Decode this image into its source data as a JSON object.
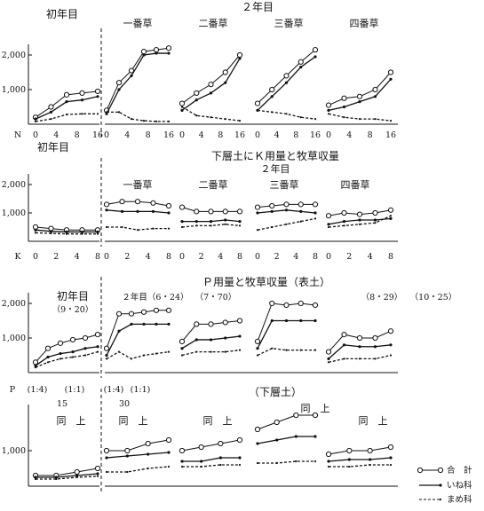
{
  "legend": {
    "total": "合　計",
    "rice": "いね科",
    "bean": "まめ科"
  },
  "panels": [
    {
      "id": "p1",
      "top_left_label": "初年目",
      "top_right_label": "２年目",
      "x_label_lead": "N",
      "ytick_labels": [
        "1,000",
        "2,000"
      ],
      "groups": [
        {
          "id": "g1",
          "label": "",
          "subtitle": "",
          "x_tick_labels": [
            "0",
            "4",
            "8",
            "16"
          ],
          "total": [
            200,
            500,
            850,
            900,
            950
          ],
          "rice": [
            150,
            350,
            650,
            700,
            800
          ],
          "bean": [
            80,
            150,
            280,
            300,
            300
          ]
        },
        {
          "id": "g2",
          "label": "一番草",
          "subtitle": "",
          "x_tick_labels": [
            "0",
            "4",
            "8",
            "16"
          ],
          "total": [
            400,
            1200,
            1550,
            2100,
            2150,
            2200
          ],
          "rice": [
            300,
            1000,
            1400,
            2000,
            2050,
            2050
          ],
          "bean": [
            350,
            350,
            150,
            100,
            80,
            80
          ]
        },
        {
          "id": "g3",
          "label": "二番草",
          "subtitle": "",
          "x_tick_labels": [
            "0",
            "4",
            "8",
            "16"
          ],
          "total": [
            600,
            900,
            1150,
            1500,
            2000
          ],
          "rice": [
            400,
            700,
            900,
            1200,
            1900
          ],
          "bean": [
            500,
            250,
            200,
            150,
            100
          ]
        },
        {
          "id": "g4",
          "label": "三番草",
          "subtitle": "",
          "x_tick_labels": [
            "0",
            "4",
            "8",
            "16"
          ],
          "total": [
            600,
            1000,
            1400,
            1800,
            2150
          ],
          "rice": [
            400,
            800,
            1200,
            1650,
            1950
          ],
          "bean": [
            400,
            350,
            300,
            200,
            150
          ]
        },
        {
          "id": "g5",
          "label": "四番草",
          "subtitle": "",
          "x_tick_labels": [
            "0",
            "4",
            "8",
            "16"
          ],
          "total": [
            550,
            750,
            800,
            1000,
            1500
          ],
          "rice": [
            400,
            500,
            650,
            800,
            1300
          ],
          "bean": [
            300,
            200,
            150,
            150,
            100
          ]
        }
      ]
    },
    {
      "id": "p2",
      "top_left_label": "初年目",
      "title_line1": "下層土にＫ用量と牧草収量",
      "title_line2": "２年目",
      "x_label_lead": "K",
      "ytick_labels": [
        "1,000",
        "2,000"
      ],
      "groups": [
        {
          "id": "g1",
          "label": "",
          "subtitle": "",
          "x_tick_labels": [
            "0",
            "2",
            "4",
            "8"
          ],
          "total": [
            500,
            450,
            400,
            400,
            400
          ],
          "rice": [
            400,
            350,
            330,
            330,
            330
          ],
          "bean": [
            300,
            280,
            260,
            260,
            260
          ]
        },
        {
          "id": "g2",
          "label": "一番草",
          "subtitle": "",
          "x_tick_labels": [
            "0",
            "2",
            "4",
            "8"
          ],
          "total": [
            1300,
            1400,
            1400,
            1350,
            1250
          ],
          "rice": [
            1100,
            1050,
            1050,
            1050,
            1000
          ],
          "bean": [
            500,
            500,
            400,
            450,
            450
          ]
        },
        {
          "id": "g3",
          "label": "二番草",
          "subtitle": "",
          "x_tick_labels": [
            "0",
            "2",
            "4",
            "8"
          ],
          "total": [
            1200,
            1050,
            1050,
            1050,
            1050
          ],
          "rice": [
            700,
            700,
            700,
            750,
            700
          ],
          "bean": [
            500,
            550,
            550,
            600,
            550
          ]
        },
        {
          "id": "g4",
          "label": "三番草",
          "subtitle": "",
          "x_tick_labels": [
            "0",
            "2",
            "4",
            "8"
          ],
          "total": [
            1200,
            1250,
            1300,
            1300,
            1300
          ],
          "rice": [
            1000,
            1050,
            1100,
            1050,
            1000
          ],
          "bean": [
            400,
            500,
            600,
            700,
            800
          ]
        },
        {
          "id": "g5",
          "label": "四番草",
          "subtitle": "",
          "x_tick_labels": [
            "0",
            "2",
            "4",
            "8"
          ],
          "total": [
            900,
            1000,
            950,
            1000,
            1100
          ],
          "rice": [
            600,
            700,
            750,
            750,
            800
          ],
          "bean": [
            500,
            550,
            600,
            650,
            900
          ]
        }
      ]
    },
    {
      "id": "p3",
      "title_line1": "Ｐ用量と牧草収量（表土）",
      "top_left_label": "初年目",
      "top_left_sub": "（9・20）",
      "x_label_lead": "",
      "ytick_labels": [
        "1,000",
        "2,000"
      ],
      "groups": [
        {
          "id": "g1",
          "label": "",
          "subtitle": "",
          "x_tick_labels": [],
          "total": [
            300,
            700,
            850,
            950,
            1000,
            1100
          ],
          "rice": [
            200,
            450,
            550,
            600,
            700,
            750
          ],
          "bean": [
            150,
            300,
            400,
            450,
            500,
            600
          ]
        },
        {
          "id": "g2",
          "label": "２年目（6・24）",
          "subtitle": "",
          "x_tick_labels": [],
          "total": [
            700,
            1700,
            1700,
            1750,
            1800,
            1800
          ],
          "rice": [
            500,
            1200,
            1400,
            1400,
            1400,
            1400
          ],
          "bean": [
            400,
            600,
            400,
            500,
            550,
            600
          ]
        },
        {
          "id": "g3",
          "label": "（7・70）",
          "subtitle": "",
          "x_tick_labels": [],
          "total": [
            900,
            1400,
            1400,
            1450,
            1500
          ],
          "rice": [
            700,
            950,
            950,
            1000,
            1050
          ],
          "bean": [
            500,
            600,
            600,
            600,
            650
          ]
        },
        {
          "id": "g4",
          "label": "",
          "subtitle": "",
          "x_tick_labels": [],
          "total": [
            900,
            2000,
            1950,
            2000,
            1950
          ],
          "rice": [
            700,
            1500,
            1500,
            1500,
            1500
          ],
          "bean": [
            500,
            700,
            650,
            650,
            650
          ]
        },
        {
          "id": "g5",
          "label": "（8・29）",
          "subtitle": "",
          "x_tick_labels": [],
          "total": [
            600,
            1100,
            1000,
            1000,
            1200
          ],
          "rice": [
            400,
            800,
            750,
            750,
            800
          ],
          "bean": [
            300,
            400,
            400,
            400,
            500
          ]
        },
        {
          "id": "g6",
          "label": "（10・25）",
          "subtitle": "",
          "x_tick_labels": [],
          "total": [],
          "rice": [],
          "bean": []
        }
      ]
    },
    {
      "id": "p4",
      "x_label_top": "P",
      "ratio_labels": [
        "(1:4)",
        "(1:1)",
        "(1:4)",
        "(1:1)"
      ],
      "ratio_values": [
        "15",
        "30"
      ],
      "title_line1": "（下層土）",
      "ytick_labels": [
        "1,000"
      ],
      "groups": [
        {
          "id": "g1",
          "label": "同　上",
          "subtitle": "",
          "total": [
            300,
            300,
            400,
            500
          ],
          "rice": [
            250,
            250,
            300,
            350
          ],
          "bean": [
            200,
            200,
            250,
            280
          ]
        },
        {
          "id": "g2",
          "label": "同　上",
          "subtitle": "",
          "total": [
            1000,
            1000,
            1200,
            1300
          ],
          "rice": [
            800,
            850,
            900,
            950
          ],
          "bean": [
            400,
            400,
            500,
            550
          ]
        },
        {
          "id": "g3",
          "label": "同　上",
          "subtitle": "",
          "total": [
            1000,
            1100,
            1200,
            1300
          ],
          "rice": [
            700,
            700,
            800,
            800
          ],
          "bean": [
            550,
            550,
            600,
            600
          ]
        },
        {
          "id": "g4",
          "label": "同　上",
          "subtitle": "",
          "total": [
            1600,
            1800,
            2000,
            2000
          ],
          "rice": [
            1200,
            1300,
            1400,
            1400
          ],
          "bean": [
            650,
            650,
            700,
            700
          ]
        },
        {
          "id": "g5",
          "label": "同　上",
          "subtitle": "",
          "total": [
            900,
            1000,
            1000,
            1100
          ],
          "rice": [
            700,
            750,
            750,
            800
          ],
          "bean": [
            550,
            550,
            600,
            600
          ]
        }
      ]
    }
  ],
  "chart_data": [
    {
      "type": "line",
      "title": "",
      "panel": "N",
      "xlabel": "N",
      "ylabel": "",
      "ylim": [
        0,
        2200
      ],
      "series": [
        {
          "name": "合　計",
          "group": "初年目"
        },
        {
          "name": "いね科"
        },
        {
          "name": "まめ科"
        }
      ]
    },
    {
      "type": "line",
      "title": "下層土にＫ用量と牧草収量",
      "xlabel": "K",
      "ylim": [
        0,
        2200
      ]
    },
    {
      "type": "line",
      "title": "Ｐ用量と牧草収量（表土）",
      "xlabel": "",
      "ylim": [
        0,
        2200
      ]
    },
    {
      "type": "line",
      "title": "（下層土）",
      "xlabel": "P",
      "ylim": [
        0,
        2200
      ]
    }
  ]
}
